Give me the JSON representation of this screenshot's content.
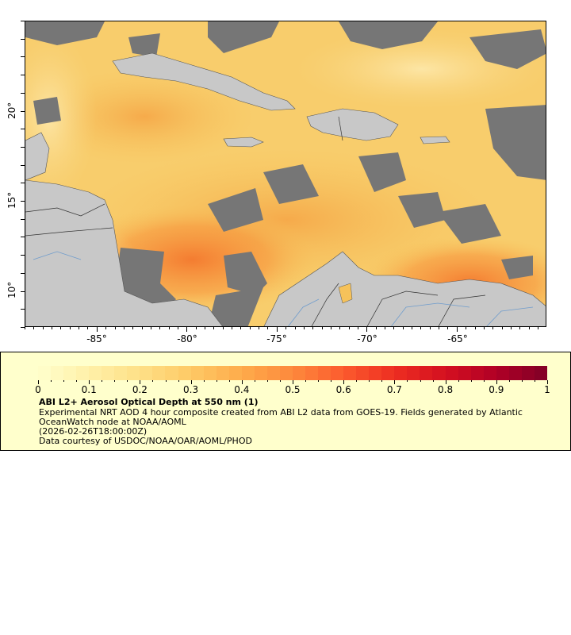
{
  "map": {
    "x_ticks": [
      "-85°",
      "-80°",
      "-75°",
      "-70°",
      "-65°"
    ],
    "y_ticks": [
      "20°",
      "15°",
      "10°"
    ],
    "colors": {
      "land": "#c8c8c8",
      "no_data": "#767676",
      "borders": "#555555",
      "rivers": "#6f9ccc"
    }
  },
  "legend": {
    "colorbar_ticks": [
      "0",
      "0.1",
      "0.2",
      "0.3",
      "0.4",
      "0.5",
      "0.6",
      "0.7",
      "0.8",
      "0.9",
      "1"
    ],
    "colorscale": [
      "#ffffcc",
      "#fff0a8",
      "#fee087",
      "#fec965",
      "#feab4b",
      "#fd893c",
      "#fc5b2e",
      "#ed2e21",
      "#d41020",
      "#b00026",
      "#800026"
    ],
    "title": "ABI L2+ Aerosol Optical Depth at 550 nm (1)",
    "description": "Experimental NRT AOD 4 hour composite created from ABI L2 data from GOES-19. Fields generated by Atlantic OceanWatch node at NOAA/AOML",
    "date": "(2026-02-26T18:00:00Z)",
    "credit": "Data courtesy of USDOC/NOAA/OAR/AOML/PHOD"
  }
}
